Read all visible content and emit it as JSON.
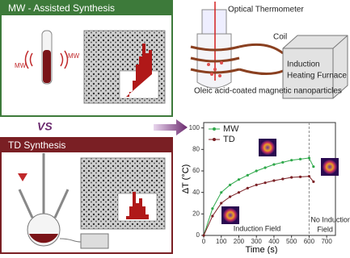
{
  "panels": {
    "mw": {
      "title": "MW - Assisted Synthesis",
      "left_label": "MW",
      "right_label": "MW"
    },
    "versus": "VS",
    "td": {
      "title": "TD Synthesis"
    }
  },
  "setup": {
    "thermometer": "Optical Thermometer",
    "coil": "Coil",
    "furnace": [
      "Induction",
      "Heating Furnace"
    ],
    "sample": "Oleic acid-coated magnetic nanoparticles"
  },
  "chart_data": {
    "type": "line",
    "xlabel": "Time (s)",
    "ylabel": "ΔT (°C)",
    "x": [
      0,
      50,
      100,
      150,
      200,
      250,
      300,
      350,
      400,
      450,
      500,
      550,
      600,
      625
    ],
    "series": [
      {
        "name": "MW",
        "color": "#2ea84a",
        "values": [
          0,
          25,
          40,
          47,
          52,
          56,
          60,
          63,
          66,
          68,
          70,
          71,
          72,
          64
        ]
      },
      {
        "name": "TD",
        "color": "#7a1f24",
        "values": [
          0,
          18,
          30,
          36,
          40,
          44,
          47,
          49,
          51,
          52.5,
          54,
          54.5,
          55,
          50
        ]
      }
    ],
    "xlim": [
      0,
      750
    ],
    "xticks": [
      0,
      100,
      200,
      300,
      400,
      500,
      600,
      700
    ],
    "ylim": [
      0,
      105
    ],
    "yticks": [
      0,
      20,
      40,
      60,
      80,
      100
    ],
    "field_off_at": 600,
    "annotations": [
      "Induction Field",
      "No Induction",
      "Field"
    ],
    "legend": "upper left"
  }
}
